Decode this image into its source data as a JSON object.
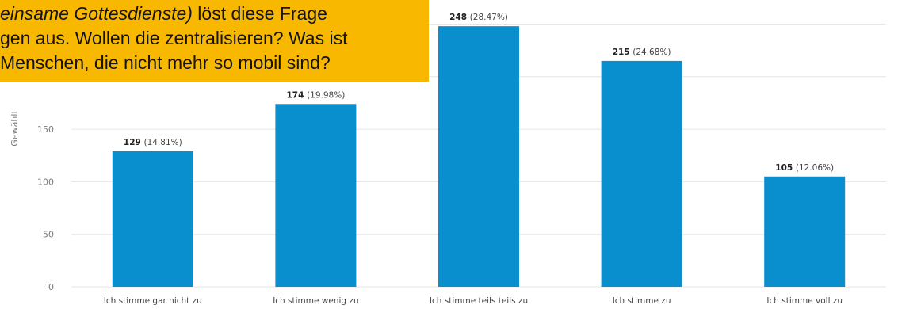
{
  "callout": {
    "lines": [
      {
        "italic": "einsame Gottesdienste)",
        "text": " löst diese Frage"
      },
      {
        "italic": "",
        "text": "gen aus. Wollen die zentralisieren? Was ist"
      },
      {
        "italic": "",
        "text": "Menschen, die nicht mehr so mobil sind?"
      }
    ]
  },
  "chart_data": {
    "type": "bar",
    "ylabel": "Gewählt",
    "xlabel": "",
    "title": "",
    "ylim": [
      0,
      250
    ],
    "yticks": [
      0,
      50,
      100,
      150
    ],
    "grid": true,
    "colors": {
      "bar": "#0a8fce",
      "grid": "#e6e6e6",
      "callout": "#f9b800"
    },
    "categories": [
      "Ich stimme gar nicht zu",
      "Ich stimme wenig zu",
      "Ich stimme teils teils zu",
      "Ich stimme zu",
      "Ich stimme voll zu"
    ],
    "values": [
      129,
      174,
      248,
      215,
      105
    ],
    "percent_labels": [
      "(14.81%)",
      "(19.98%)",
      "(28.47%)",
      "(24.68%)",
      "(12.06%)"
    ]
  }
}
